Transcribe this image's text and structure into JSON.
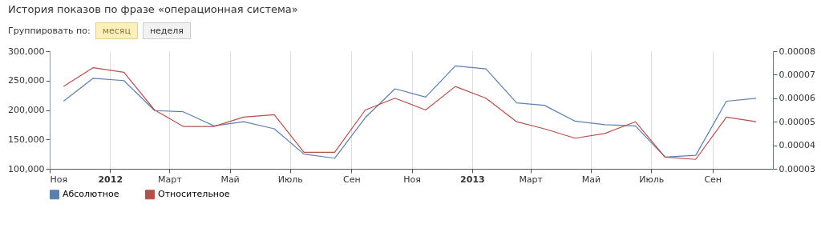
{
  "chart_data": {
    "type": "line",
    "title": "История показов по фразе «операционная система»",
    "annotations": [
      "Группировать по:",
      "месяц",
      "неделя"
    ],
    "x": [
      "2011-11-15",
      "2011-12-15",
      "2012-01-15",
      "2012-02-15",
      "2012-03-15",
      "2012-04-15",
      "2012-05-15",
      "2012-06-15",
      "2012-07-15",
      "2012-08-15",
      "2012-09-15",
      "2012-10-15",
      "2012-11-15",
      "2012-12-15",
      "2013-01-15",
      "2013-02-15",
      "2013-03-15",
      "2013-04-15",
      "2013-05-15",
      "2013-06-15",
      "2013-07-15",
      "2013-08-15",
      "2013-09-15",
      "2013-10-15"
    ],
    "xlim": [
      "2011-11-01",
      "2013-11-01"
    ],
    "xticks": [
      {
        "value": "2011-11-01",
        "label": "Ноя"
      },
      {
        "value": "2012-01-01",
        "label": "2012"
      },
      {
        "value": "2012-03-01",
        "label": "Март"
      },
      {
        "value": "2012-05-01",
        "label": "Май"
      },
      {
        "value": "2012-07-01",
        "label": "Июль"
      },
      {
        "value": "2012-09-01",
        "label": "Сен"
      },
      {
        "value": "2012-11-01",
        "label": "Ноя"
      },
      {
        "value": "2013-01-01",
        "label": "2013"
      },
      {
        "value": "2013-03-01",
        "label": "Март"
      },
      {
        "value": "2013-05-01",
        "label": "Май"
      },
      {
        "value": "2013-07-01",
        "label": "Июль"
      },
      {
        "value": "2013-09-01",
        "label": "Сен"
      }
    ],
    "ylim": [
      100000,
      300000
    ],
    "yticks": [
      {
        "value": 100000,
        "label": "100,000"
      },
      {
        "value": 150000,
        "label": "150,000"
      },
      {
        "value": 200000,
        "label": "200,000"
      },
      {
        "value": 250000,
        "label": "250,000"
      },
      {
        "value": 300000,
        "label": "300,000"
      }
    ],
    "y2lim": [
      3e-05,
      8e-05
    ],
    "y2ticks": [
      {
        "value": 3e-05,
        "label": "0.00003"
      },
      {
        "value": 4e-05,
        "label": "0.00004"
      },
      {
        "value": 5e-05,
        "label": "0.00005"
      },
      {
        "value": 6e-05,
        "label": "0.00006"
      },
      {
        "value": 7e-05,
        "label": "0.00007"
      },
      {
        "value": 8e-05,
        "label": "0.00008"
      }
    ],
    "grid": "x",
    "legend": "bottom left",
    "marker": "none",
    "line_style": "solid",
    "series": [
      {
        "name": "Абсолютное",
        "color": "#5b7fad",
        "values": [
          215000,
          254000,
          250000,
          199000,
          197000,
          173000,
          180000,
          168000,
          125000,
          118000,
          187000,
          236000,
          222000,
          275000,
          270000,
          212000,
          208000,
          181000,
          175000,
          173000,
          120000,
          123000,
          215000,
          220000
        ]
      },
      {
        "name": "Относительное",
        "color": "#b5504c",
        "axis": "y2",
        "values": [
          6.5e-05,
          7.3e-05,
          7.1e-05,
          5.5e-05,
          4.8e-05,
          4.8e-05,
          5.2e-05,
          5.3e-05,
          3.7e-05,
          3.7e-05,
          5.5e-05,
          6e-05,
          5.5e-05,
          6.5e-05,
          6e-05,
          5e-05,
          4.7e-05,
          4.3e-05,
          4.5e-05,
          5e-05,
          3.5e-05,
          3.4e-05,
          5.2e-05,
          5e-05
        ]
      }
    ]
  }
}
